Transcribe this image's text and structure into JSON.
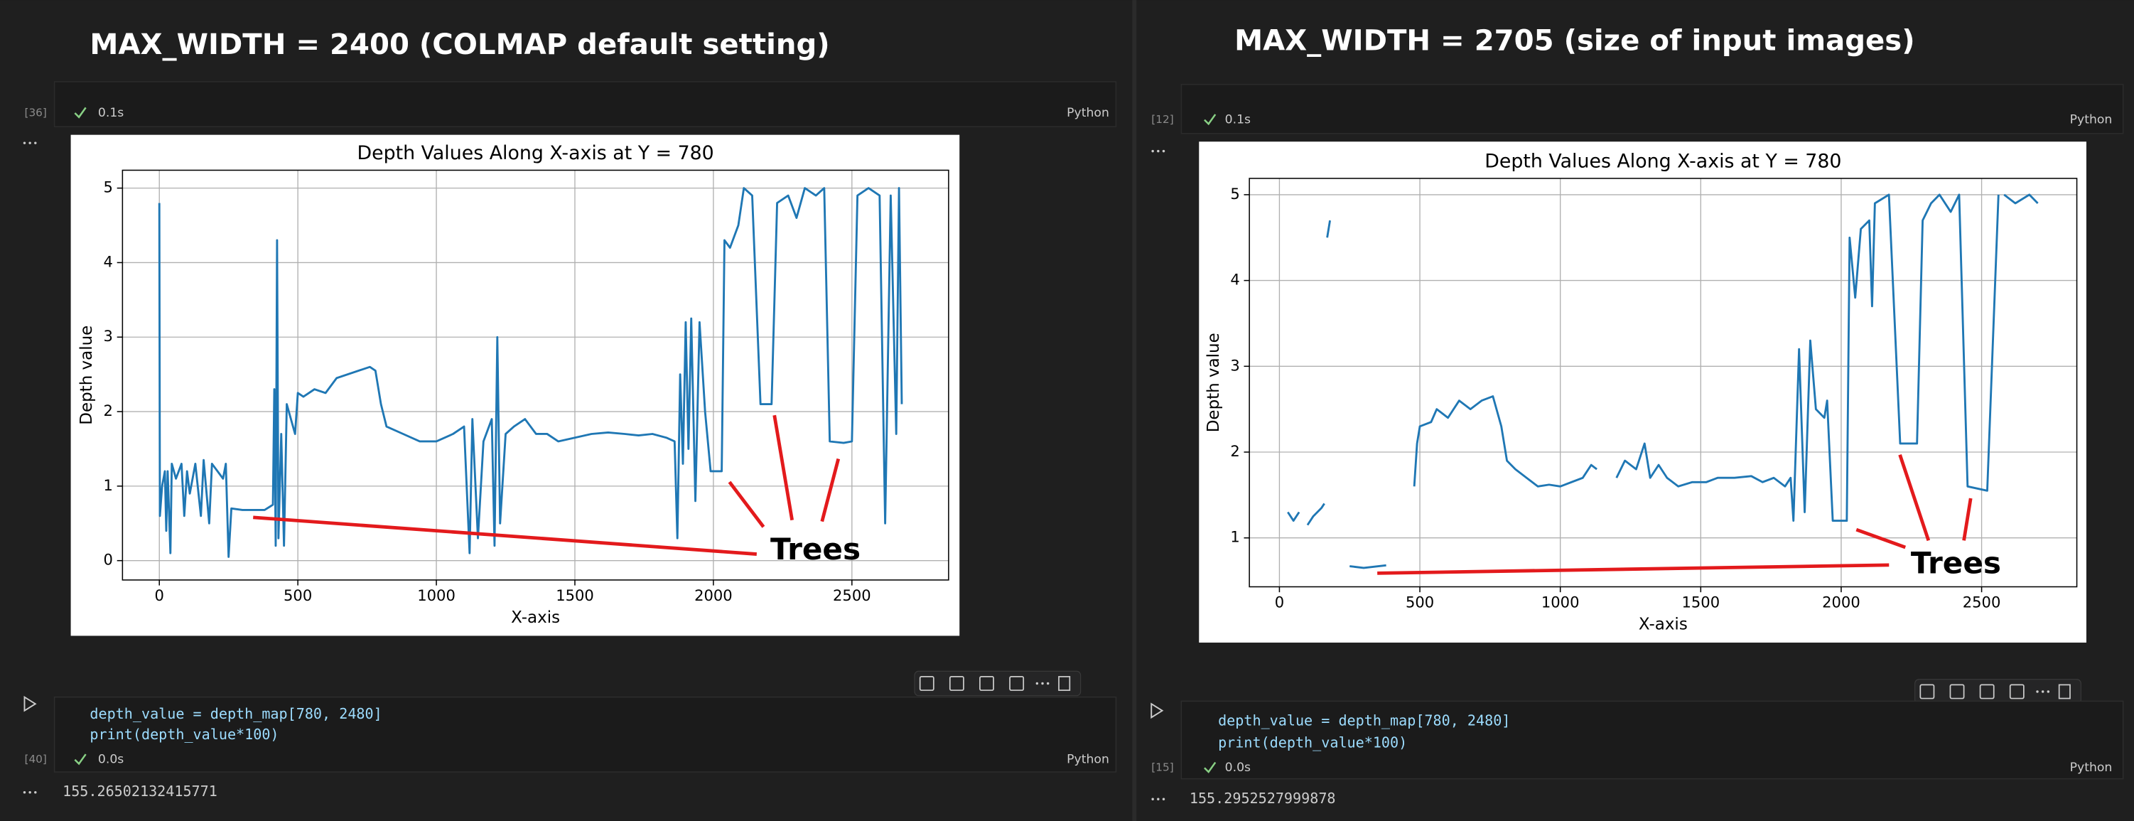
{
  "panels": [
    {
      "heading": "MAX_WIDTH = 2400 (COLMAP default setting)",
      "exec_count": "[36]",
      "time": "0.1s",
      "language": "Python",
      "code": [
        "depth_value = depth_map[780, 2480]",
        "print(depth_value*100)"
      ],
      "code_exec_count": "[40]",
      "code_time": "0.0s",
      "code_language": "Python",
      "output": "155.26502132415771"
    },
    {
      "heading": "MAX_WIDTH = 2705 (size of input images)",
      "exec_count": "[12]",
      "time": "0.1s",
      "language": "Python",
      "code": [
        "depth_value = depth_map[780, 2480]",
        "print(depth_value*100)"
      ],
      "code_exec_count": "[15]",
      "code_time": "0.0s",
      "code_language": "Python",
      "output": "155.2952527999878"
    }
  ],
  "chart_data": [
    {
      "type": "line",
      "title": "Depth Values Along X-axis at Y = 780",
      "xlabel": "X-axis",
      "ylabel": "Depth value",
      "annotation": "Trees",
      "xlim": [
        -133,
        2849
      ],
      "ylim": [
        -0.26,
        5.24
      ],
      "xticks": [
        0,
        500,
        1000,
        1500,
        2000,
        2500
      ],
      "yticks": [
        0,
        1,
        2,
        3,
        4,
        5
      ],
      "grid": true,
      "x": [
        0,
        2,
        10,
        20,
        25,
        30,
        40,
        45,
        60,
        80,
        90,
        100,
        110,
        130,
        150,
        160,
        180,
        190,
        230,
        240,
        250,
        260,
        300,
        380,
        410,
        415,
        420,
        425,
        430,
        440,
        450,
        460,
        490,
        500,
        520,
        560,
        600,
        640,
        680,
        720,
        760,
        780,
        800,
        820,
        880,
        940,
        1000,
        1060,
        1100,
        1120,
        1130,
        1150,
        1170,
        1200,
        1210,
        1220,
        1230,
        1250,
        1280,
        1320,
        1360,
        1400,
        1440,
        1500,
        1560,
        1620,
        1680,
        1730,
        1780,
        1830,
        1860,
        1870,
        1880,
        1890,
        1900,
        1910,
        1920,
        1935,
        1950,
        1970,
        1990,
        2030,
        2040,
        2060,
        2090,
        2110,
        2140,
        2170,
        2210,
        2230,
        2270,
        2300,
        2330,
        2370,
        2400,
        2420,
        2470,
        2500,
        2520,
        2560,
        2600,
        2620,
        2640,
        2660,
        2670,
        2680
      ],
      "series": [
        {
          "color": "#1f77b4",
          "values": [
            4.8,
            0.6,
            1.0,
            1.2,
            0.4,
            1.2,
            0.1,
            1.3,
            1.1,
            1.3,
            0.6,
            1.2,
            0.9,
            1.3,
            0.6,
            1.35,
            0.5,
            1.3,
            1.1,
            1.3,
            0.05,
            0.7,
            0.68,
            0.68,
            0.75,
            2.3,
            0.2,
            4.3,
            0.3,
            1.7,
            0.2,
            2.1,
            1.7,
            2.25,
            2.2,
            2.3,
            2.25,
            2.45,
            2.5,
            2.55,
            2.6,
            2.55,
            2.1,
            1.8,
            1.7,
            1.6,
            1.6,
            1.7,
            1.8,
            0.1,
            1.9,
            0.3,
            1.6,
            1.9,
            0.2,
            3.0,
            0.5,
            1.7,
            1.8,
            1.9,
            1.7,
            1.7,
            1.6,
            1.65,
            1.7,
            1.72,
            1.7,
            1.68,
            1.7,
            1.65,
            1.6,
            0.3,
            2.5,
            1.3,
            3.2,
            1.5,
            3.25,
            0.8,
            3.2,
            2.0,
            1.2,
            1.2,
            4.3,
            4.2,
            4.5,
            5.0,
            4.9,
            2.1,
            2.1,
            4.8,
            4.9,
            4.6,
            5.0,
            4.9,
            5.0,
            1.6,
            1.58,
            1.6,
            4.9,
            5.0,
            4.9,
            0.5,
            4.9,
            1.7,
            5.0,
            2.1
          ]
        }
      ]
    },
    {
      "type": "line",
      "title": "Depth Values Along X-axis at Y = 780",
      "xlabel": "X-axis",
      "ylabel": "Depth value",
      "annotation": "Trees",
      "xlim": [
        -107,
        2839
      ],
      "ylim": [
        0.43,
        5.19
      ],
      "xticks": [
        0,
        500,
        1000,
        1500,
        2000,
        2500
      ],
      "yticks": [
        1,
        2,
        3,
        4,
        5
      ],
      "grid": true,
      "x": [
        30,
        50,
        70,
        85,
        100,
        120,
        150,
        160,
        165,
        170,
        180,
        215,
        250,
        300,
        380,
        415,
        450,
        465,
        480,
        490,
        500,
        540,
        560,
        600,
        640,
        680,
        720,
        760,
        790,
        810,
        840,
        880,
        920,
        960,
        1000,
        1040,
        1080,
        1110,
        1130,
        1165,
        1200,
        1230,
        1270,
        1300,
        1320,
        1350,
        1380,
        1420,
        1470,
        1520,
        1560,
        1620,
        1680,
        1720,
        1760,
        1800,
        1820,
        1830,
        1850,
        1870,
        1890,
        1910,
        1940,
        1950,
        1970,
        2020,
        2030,
        2050,
        2070,
        2100,
        2110,
        2120,
        2170,
        2210,
        2270,
        2290,
        2320,
        2350,
        2390,
        2420,
        2450,
        2520,
        2560,
        2570,
        2580,
        2620,
        2670,
        2700
      ],
      "series": [
        {
          "color": "#1f77b4",
          "values": [
            1.3,
            1.2,
            1.3,
            null,
            1.15,
            1.25,
            1.35,
            1.4,
            null,
            4.5,
            4.7,
            null,
            0.67,
            0.65,
            0.68,
            null,
            1.75,
            null,
            1.6,
            2.1,
            2.3,
            2.35,
            2.5,
            2.4,
            2.6,
            2.5,
            2.6,
            2.65,
            2.3,
            1.9,
            1.8,
            1.7,
            1.6,
            1.62,
            1.6,
            1.65,
            1.7,
            1.85,
            1.8,
            null,
            1.7,
            1.9,
            1.8,
            2.1,
            1.7,
            1.85,
            1.7,
            1.6,
            1.65,
            1.65,
            1.7,
            1.7,
            1.72,
            1.65,
            1.7,
            1.6,
            1.7,
            1.2,
            3.2,
            1.3,
            3.3,
            2.5,
            2.4,
            2.6,
            1.2,
            1.2,
            4.5,
            3.8,
            4.6,
            4.7,
            3.7,
            4.9,
            5.0,
            2.1,
            2.1,
            4.7,
            4.9,
            5.0,
            4.8,
            5.0,
            1.6,
            1.55,
            5.0,
            null,
            5.0,
            4.9,
            5.0,
            4.9
          ]
        }
      ]
    }
  ]
}
